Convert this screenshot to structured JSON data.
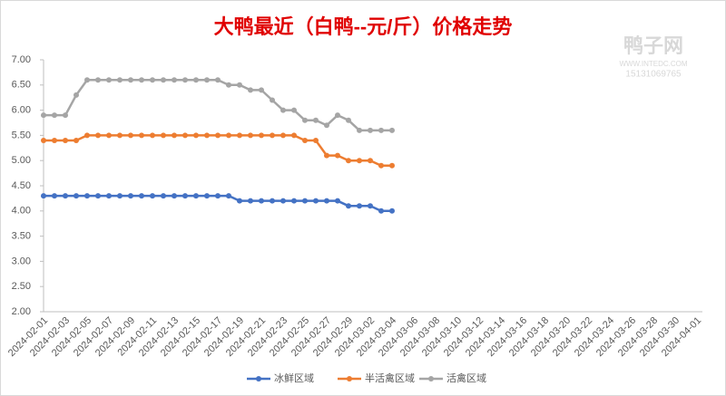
{
  "chart_data": {
    "type": "line",
    "title": "大鸭最近（白鸭--元/斤）价格走势",
    "watermark": {
      "name": "鸭子网",
      "site": "WWW.INTEDC.COM",
      "phone": "15131069765"
    },
    "categories": [
      "2024-02-01",
      null,
      "2024-02-03",
      null,
      "2024-02-05",
      null,
      "2024-02-07",
      null,
      "2024-02-09",
      null,
      "2024-02-11",
      null,
      "2024-02-13",
      null,
      "2024-02-15",
      null,
      "2024-02-17",
      null,
      "2024-02-19",
      null,
      "2024-02-21",
      null,
      "2024-02-23",
      null,
      "2024-02-25",
      null,
      "2024-02-27",
      null,
      "2024-02-29",
      null,
      "2024-03-02",
      null,
      "2024-03-04",
      null,
      "2024-03-06",
      null,
      "2024-03-08",
      null,
      "2024-03-10",
      null,
      "2024-03-12",
      null,
      "2024-03-14",
      null,
      "2024-03-16",
      null,
      "2024-03-18",
      null,
      "2024-03-20",
      null,
      "2024-03-22",
      null,
      "2024-03-24",
      null,
      "2024-03-26",
      null,
      "2024-03-28",
      null,
      "2024-03-30",
      null,
      "2024-04-01"
    ],
    "series": [
      {
        "name": "冰鲜区域",
        "color": "#4472c4",
        "values": [
          4.3,
          4.3,
          4.3,
          4.3,
          4.3,
          4.3,
          4.3,
          4.3,
          4.3,
          4.3,
          4.3,
          4.3,
          4.3,
          4.3,
          4.3,
          4.3,
          4.3,
          4.3,
          4.2,
          4.2,
          4.2,
          4.2,
          4.2,
          4.2,
          4.2,
          4.2,
          4.2,
          4.2,
          4.1,
          4.1,
          4.1,
          4.0,
          4.0,
          null,
          null,
          null,
          null,
          null,
          null,
          null,
          null,
          null,
          null,
          null,
          null,
          null,
          null,
          null,
          null,
          null,
          null,
          null,
          null,
          null,
          null,
          null,
          null,
          null,
          null,
          null,
          null
        ]
      },
      {
        "name": "半活禽区域",
        "color": "#ed7d31",
        "values": [
          5.4,
          5.4,
          5.4,
          5.4,
          5.5,
          5.5,
          5.5,
          5.5,
          5.5,
          5.5,
          5.5,
          5.5,
          5.5,
          5.5,
          5.5,
          5.5,
          5.5,
          5.5,
          5.5,
          5.5,
          5.5,
          5.5,
          5.5,
          5.5,
          5.4,
          5.4,
          5.1,
          5.1,
          5.0,
          5.0,
          5.0,
          4.9,
          4.9,
          null,
          null,
          null,
          null,
          null,
          null,
          null,
          null,
          null,
          null,
          null,
          null,
          null,
          null,
          null,
          null,
          null,
          null,
          null,
          null,
          null,
          null,
          null,
          null,
          null,
          null,
          null,
          null
        ]
      },
      {
        "name": "活禽区域",
        "color": "#a5a5a5",
        "values": [
          5.9,
          5.9,
          5.9,
          6.3,
          6.6,
          6.6,
          6.6,
          6.6,
          6.6,
          6.6,
          6.6,
          6.6,
          6.6,
          6.6,
          6.6,
          6.6,
          6.6,
          6.5,
          6.5,
          6.4,
          6.4,
          6.2,
          6.0,
          6.0,
          5.8,
          5.8,
          5.7,
          5.9,
          5.8,
          5.6,
          5.6,
          5.6,
          5.6,
          null,
          null,
          null,
          null,
          null,
          null,
          null,
          null,
          null,
          null,
          null,
          null,
          null,
          null,
          null,
          null,
          null,
          null,
          null,
          null,
          null,
          null,
          null,
          null,
          null,
          null,
          null,
          null
        ]
      }
    ],
    "ylim": [
      2,
      7
    ],
    "yticks": [
      {
        "value": 2,
        "label": "2.00"
      },
      {
        "value": 2.5,
        "label": "2.50"
      },
      {
        "value": 3,
        "label": "3.00"
      },
      {
        "value": 3.5,
        "label": "3.50"
      },
      {
        "value": 4,
        "label": "4.00"
      },
      {
        "value": 4.5,
        "label": "4.50"
      },
      {
        "value": 5,
        "label": "5.00"
      },
      {
        "value": 5.5,
        "label": "5.50"
      },
      {
        "value": 6,
        "label": "6.00"
      },
      {
        "value": 6.5,
        "label": "6.50"
      },
      {
        "value": 7,
        "label": "7.00"
      }
    ],
    "grid": false,
    "legend": "bottom"
  }
}
